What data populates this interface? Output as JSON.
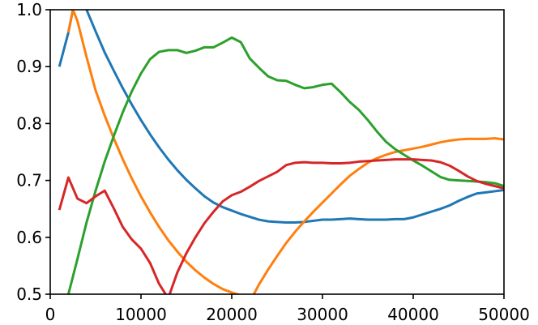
{
  "chart_data": {
    "type": "line",
    "title": "",
    "xlabel": "",
    "ylabel": "",
    "xlim": [
      0,
      50000
    ],
    "ylim": [
      0.5,
      1.0
    ],
    "grid": false,
    "x_ticks": [
      0,
      10000,
      20000,
      30000,
      40000,
      50000
    ],
    "x_tick_labels": [
      "0",
      "10000",
      "20000",
      "30000",
      "40000",
      "50000"
    ],
    "y_ticks": [
      0.5,
      0.6,
      0.7,
      0.8,
      0.9,
      1.0
    ],
    "y_tick_labels": [
      "0.5",
      "0.6",
      "0.7",
      "0.8",
      "0.9",
      "1.0"
    ],
    "series": [
      {
        "color": "#1f77b4",
        "x": [
          1000,
          2000,
          3000,
          4000,
          5000,
          6000,
          7000,
          8000,
          9000,
          10000,
          11000,
          12000,
          13000,
          14000,
          15000,
          16000,
          17000,
          18000,
          19000,
          20000,
          21000,
          22000,
          23000,
          24000,
          25000,
          26000,
          27000,
          28000,
          29000,
          30000,
          31000,
          32000,
          33000,
          34000,
          35000,
          36000,
          37000,
          38000,
          39000,
          40000,
          41000,
          42000,
          43000,
          44000,
          45000,
          46000,
          47000,
          48000,
          49000,
          50000
        ],
        "y": [
          0.9,
          0.96,
          1.04,
          1.0,
          0.962,
          0.925,
          0.893,
          0.862,
          0.833,
          0.806,
          0.781,
          0.758,
          0.737,
          0.718,
          0.701,
          0.686,
          0.672,
          0.661,
          0.653,
          0.647,
          0.641,
          0.636,
          0.631,
          0.628,
          0.627,
          0.626,
          0.626,
          0.627,
          0.629,
          0.631,
          0.631,
          0.632,
          0.633,
          0.632,
          0.631,
          0.631,
          0.631,
          0.632,
          0.632,
          0.635,
          0.64,
          0.645,
          0.65,
          0.656,
          0.664,
          0.671,
          0.677,
          0.679,
          0.681,
          0.683
        ]
      },
      {
        "color": "#ff7f0e",
        "x": [
          2000,
          2500,
          3000,
          4000,
          5000,
          6000,
          7000,
          8000,
          9000,
          10000,
          11000,
          12000,
          13000,
          14000,
          15000,
          16000,
          17000,
          18000,
          19000,
          20000,
          21000,
          21800,
          22300,
          23000,
          24000,
          25000,
          26000,
          27000,
          28000,
          29000,
          30000,
          31000,
          32000,
          33000,
          34000,
          35000,
          36000,
          37000,
          38000,
          39000,
          40000,
          41000,
          42000,
          43000,
          44000,
          45000,
          46000,
          47000,
          48000,
          49000,
          50000
        ],
        "y": [
          0.96,
          1.0,
          0.98,
          0.917,
          0.858,
          0.814,
          0.774,
          0.737,
          0.703,
          0.672,
          0.644,
          0.618,
          0.595,
          0.575,
          0.557,
          0.542,
          0.529,
          0.518,
          0.509,
          0.503,
          0.498,
          0.493,
          0.496,
          0.517,
          0.543,
          0.567,
          0.59,
          0.61,
          0.628,
          0.645,
          0.661,
          0.677,
          0.693,
          0.708,
          0.72,
          0.731,
          0.739,
          0.745,
          0.75,
          0.753,
          0.756,
          0.759,
          0.763,
          0.767,
          0.77,
          0.772,
          0.773,
          0.773,
          0.773,
          0.774,
          0.772
        ]
      },
      {
        "color": "#2ca02c",
        "x": [
          2000,
          3000,
          4000,
          5000,
          6000,
          7000,
          8000,
          9000,
          10000,
          11000,
          12000,
          13000,
          14000,
          15000,
          16000,
          17000,
          18000,
          19000,
          20000,
          21000,
          22000,
          23000,
          24000,
          25000,
          26000,
          27000,
          28000,
          29000,
          30000,
          31000,
          32000,
          33000,
          34000,
          35000,
          36000,
          37000,
          38000,
          39000,
          40000,
          41000,
          42000,
          43000,
          44000,
          45000,
          46000,
          47000,
          48000,
          49000,
          50000
        ],
        "y": [
          0.5,
          0.562,
          0.626,
          0.682,
          0.733,
          0.778,
          0.82,
          0.857,
          0.888,
          0.913,
          0.926,
          0.929,
          0.929,
          0.924,
          0.928,
          0.934,
          0.934,
          0.942,
          0.951,
          0.943,
          0.914,
          0.898,
          0.883,
          0.876,
          0.875,
          0.868,
          0.862,
          0.864,
          0.868,
          0.87,
          0.855,
          0.838,
          0.824,
          0.806,
          0.786,
          0.768,
          0.755,
          0.745,
          0.735,
          0.726,
          0.716,
          0.706,
          0.701,
          0.7,
          0.699,
          0.698,
          0.697,
          0.695,
          0.69
        ]
      },
      {
        "color": "#d62728",
        "x": [
          1000,
          2000,
          3000,
          4000,
          5000,
          6000,
          7000,
          8000,
          9000,
          10000,
          11000,
          12000,
          13000,
          14000,
          15000,
          16000,
          17000,
          18000,
          19000,
          20000,
          21000,
          22000,
          23000,
          24000,
          25000,
          26000,
          27000,
          28000,
          29000,
          30000,
          31000,
          32000,
          33000,
          34000,
          35000,
          36000,
          37000,
          38000,
          39000,
          40000,
          41000,
          42000,
          43000,
          44000,
          45000,
          46000,
          47000,
          48000,
          49000,
          50000
        ],
        "y": [
          0.648,
          0.705,
          0.668,
          0.66,
          0.672,
          0.682,
          0.651,
          0.618,
          0.596,
          0.58,
          0.555,
          0.518,
          0.493,
          0.538,
          0.572,
          0.6,
          0.625,
          0.645,
          0.663,
          0.674,
          0.68,
          0.689,
          0.699,
          0.707,
          0.715,
          0.727,
          0.731,
          0.732,
          0.731,
          0.731,
          0.73,
          0.73,
          0.731,
          0.733,
          0.734,
          0.735,
          0.736,
          0.737,
          0.737,
          0.737,
          0.736,
          0.735,
          0.732,
          0.726,
          0.717,
          0.707,
          0.699,
          0.694,
          0.69,
          0.686
        ]
      }
    ]
  }
}
